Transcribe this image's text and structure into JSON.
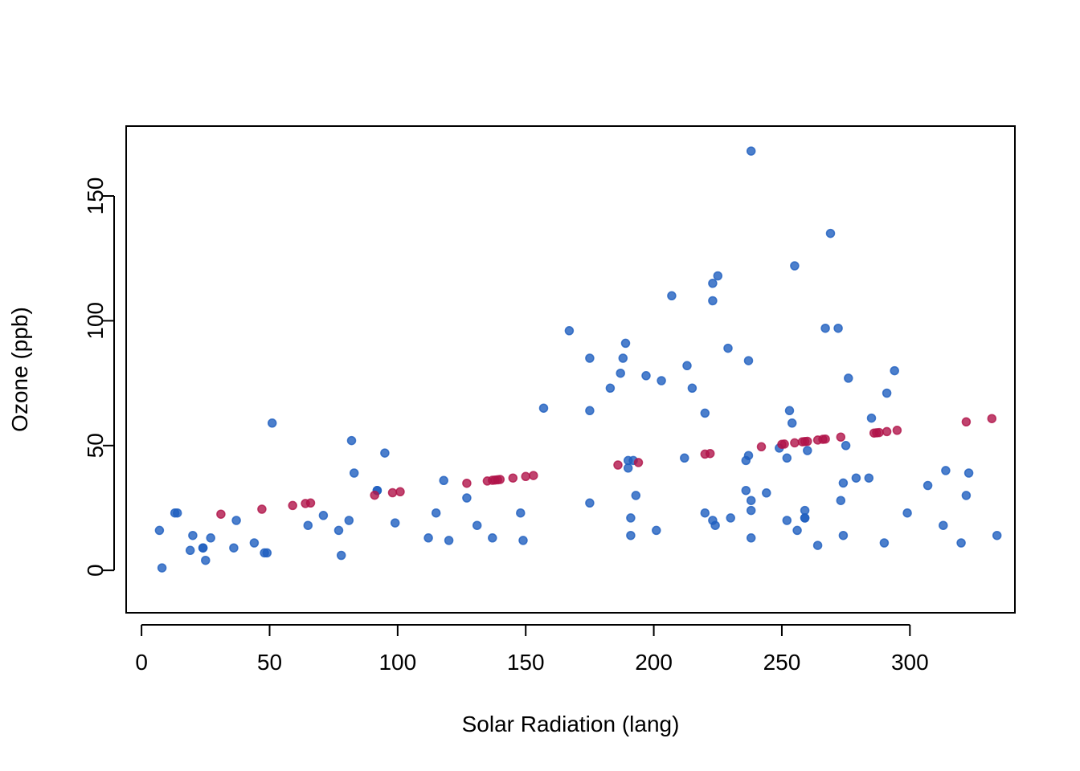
{
  "chart_data": {
    "type": "scatter",
    "title": "",
    "xlabel": "Solar Radiation (lang)",
    "ylabel": "Ozone (ppb)",
    "xlim": [
      -6,
      341
    ],
    "ylim": [
      -17,
      178
    ],
    "x_ticks": [
      0,
      50,
      100,
      150,
      200,
      250,
      300
    ],
    "y_ticks": [
      0,
      50,
      100,
      150
    ],
    "grid": false,
    "legend": "none",
    "colors": {
      "observed": "#1f5fbf",
      "fitted": "#b0144a"
    },
    "series": [
      {
        "role": "observed",
        "points": [
          [
            7,
            16
          ],
          [
            8,
            1
          ],
          [
            13,
            23
          ],
          [
            14,
            23
          ],
          [
            19,
            8
          ],
          [
            20,
            14
          ],
          [
            24,
            9
          ],
          [
            24,
            9
          ],
          [
            25,
            4
          ],
          [
            27,
            13
          ],
          [
            36,
            9
          ],
          [
            37,
            20
          ],
          [
            44,
            11
          ],
          [
            48,
            7
          ],
          [
            49,
            7
          ],
          [
            51,
            59
          ],
          [
            65,
            18
          ],
          [
            71,
            22
          ],
          [
            77,
            16
          ],
          [
            78,
            6
          ],
          [
            81,
            20
          ],
          [
            82,
            52
          ],
          [
            83,
            39
          ],
          [
            92,
            32
          ],
          [
            92,
            32
          ],
          [
            95,
            47
          ],
          [
            99,
            19
          ],
          [
            112,
            13
          ],
          [
            115,
            23
          ],
          [
            118,
            36
          ],
          [
            120,
            12
          ],
          [
            127,
            29
          ],
          [
            131,
            18
          ],
          [
            137,
            13
          ],
          [
            148,
            23
          ],
          [
            149,
            12
          ],
          [
            157,
            65
          ],
          [
            167,
            96
          ],
          [
            175,
            85
          ],
          [
            175,
            64
          ],
          [
            175,
            27
          ],
          [
            183,
            73
          ],
          [
            187,
            79
          ],
          [
            188,
            85
          ],
          [
            189,
            91
          ],
          [
            190,
            44
          ],
          [
            190,
            41
          ],
          [
            191,
            21
          ],
          [
            191,
            14
          ],
          [
            192,
            44
          ],
          [
            193,
            30
          ],
          [
            197,
            78
          ],
          [
            201,
            16
          ],
          [
            203,
            76
          ],
          [
            207,
            110
          ],
          [
            212,
            45
          ],
          [
            213,
            82
          ],
          [
            215,
            73
          ],
          [
            220,
            63
          ],
          [
            220,
            23
          ],
          [
            223,
            115
          ],
          [
            223,
            108
          ],
          [
            223,
            20
          ],
          [
            224,
            18
          ],
          [
            225,
            118
          ],
          [
            229,
            89
          ],
          [
            230,
            21
          ],
          [
            236,
            32
          ],
          [
            236,
            44
          ],
          [
            237,
            84
          ],
          [
            237,
            46
          ],
          [
            238,
            168
          ],
          [
            238,
            28
          ],
          [
            238,
            24
          ],
          [
            238,
            13
          ],
          [
            244,
            31
          ],
          [
            249,
            49
          ],
          [
            252,
            45
          ],
          [
            252,
            20
          ],
          [
            253,
            64
          ],
          [
            254,
            59
          ],
          [
            255,
            122
          ],
          [
            256,
            16
          ],
          [
            259,
            21
          ],
          [
            259,
            24
          ],
          [
            259,
            21
          ],
          [
            260,
            48
          ],
          [
            264,
            10
          ],
          [
            267,
            97
          ],
          [
            269,
            135
          ],
          [
            272,
            97
          ],
          [
            273,
            28
          ],
          [
            274,
            35
          ],
          [
            274,
            14
          ],
          [
            275,
            50
          ],
          [
            276,
            77
          ],
          [
            279,
            37
          ],
          [
            284,
            37
          ],
          [
            285,
            61
          ],
          [
            290,
            11
          ],
          [
            291,
            71
          ],
          [
            294,
            80
          ],
          [
            299,
            23
          ],
          [
            307,
            34
          ],
          [
            313,
            18
          ],
          [
            314,
            40
          ],
          [
            320,
            11
          ],
          [
            322,
            30
          ],
          [
            323,
            39
          ],
          [
            334,
            14
          ]
        ]
      },
      {
        "role": "fitted",
        "points": [
          [
            31,
            22.5
          ],
          [
            47,
            24.5
          ],
          [
            59,
            26
          ],
          [
            64,
            26.8
          ],
          [
            66,
            27
          ],
          [
            91,
            30.1
          ],
          [
            98,
            31.1
          ],
          [
            101,
            31.5
          ],
          [
            127,
            34.9
          ],
          [
            135,
            35.8
          ],
          [
            137,
            36.1
          ],
          [
            138,
            36.2
          ],
          [
            139,
            36.3
          ],
          [
            140,
            36.4
          ],
          [
            145,
            37
          ],
          [
            150,
            37.6
          ],
          [
            153,
            38
          ],
          [
            186,
            42.2
          ],
          [
            194,
            43.2
          ],
          [
            220,
            46.6
          ],
          [
            222,
            46.8
          ],
          [
            242,
            49.5
          ],
          [
            250,
            50.5
          ],
          [
            251,
            50.6
          ],
          [
            255,
            51.1
          ],
          [
            258,
            51.5
          ],
          [
            259,
            51.6
          ],
          [
            260,
            51.7
          ],
          [
            264,
            52.2
          ],
          [
            266,
            52.5
          ],
          [
            267,
            52.6
          ],
          [
            273,
            53.4
          ],
          [
            286,
            55
          ],
          [
            287,
            55.1
          ],
          [
            288,
            55.2
          ],
          [
            291,
            55.6
          ],
          [
            295,
            56.1
          ],
          [
            322,
            59.5
          ],
          [
            332,
            60.8
          ]
        ]
      }
    ]
  }
}
